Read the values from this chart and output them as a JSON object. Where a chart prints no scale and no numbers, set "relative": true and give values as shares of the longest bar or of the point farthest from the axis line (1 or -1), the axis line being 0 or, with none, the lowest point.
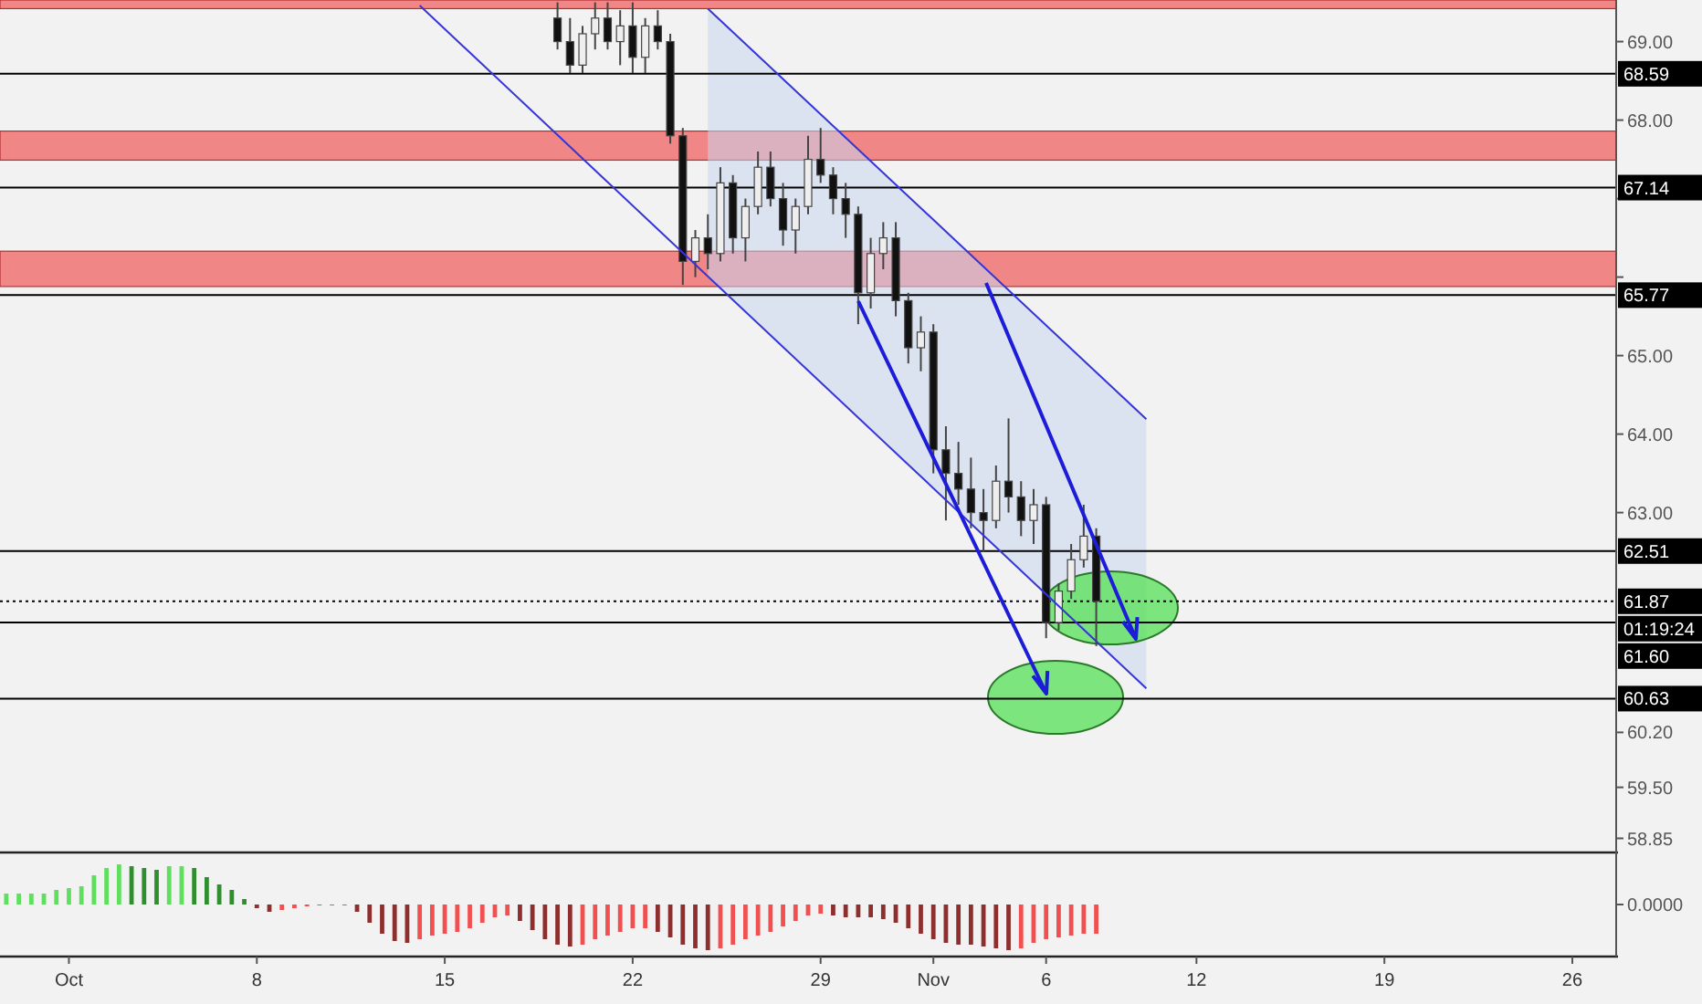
{
  "chart_data": [
    {
      "type": "candlestick",
      "ylim": [
        58.67,
        69.53
      ],
      "tick_labels": "y",
      "grid": false,
      "yticks": [
        {
          "value": 69,
          "label": "69.00"
        },
        {
          "value": 68,
          "label": "68.00"
        },
        {
          "value": 67,
          "label": null
        },
        {
          "value": 66,
          "label": null
        },
        {
          "value": 65,
          "label": "65.00"
        },
        {
          "value": 64,
          "label": "64.00"
        },
        {
          "value": 63,
          "label": "63.00"
        },
        {
          "value": 60.2,
          "label": "60.20"
        },
        {
          "value": 59.5,
          "label": "59.50"
        },
        {
          "value": 58.85,
          "label": "58.85"
        }
      ],
      "categories": [
        null,
        null,
        null,
        null,
        null,
        null,
        null,
        null,
        null,
        null,
        null,
        null,
        null,
        null,
        null,
        null,
        null,
        null,
        null,
        null,
        null,
        null,
        null,
        null,
        null,
        null,
        null,
        null,
        null,
        null,
        null,
        null,
        null,
        null,
        null,
        null,
        null,
        null,
        null,
        null,
        null,
        null,
        null,
        null,
        null,
        null,
        null,
        null,
        null,
        null,
        null,
        null,
        null,
        null,
        null,
        null,
        null,
        null,
        null,
        null,
        null,
        null,
        null,
        null,
        null,
        null,
        null,
        null,
        null,
        null,
        null,
        null,
        null,
        null,
        null,
        null,
        null,
        null,
        null,
        null,
        null,
        null,
        null,
        null,
        null,
        null,
        null,
        null,
        null,
        null,
        null,
        null,
        null,
        null,
        null,
        null,
        null,
        null,
        null,
        null,
        null,
        null,
        null,
        null,
        null,
        null,
        null,
        null,
        null,
        null,
        null,
        null,
        null,
        null,
        null,
        null,
        null,
        null,
        null,
        null,
        null,
        null,
        null,
        null,
        null,
        null,
        null,
        null,
        null
      ],
      "ohlc": [
        null,
        null,
        null,
        null,
        null,
        null,
        null,
        null,
        null,
        null,
        null,
        null,
        null,
        null,
        null,
        null,
        null,
        null,
        null,
        null,
        null,
        null,
        null,
        null,
        null,
        null,
        null,
        null,
        null,
        null,
        null,
        null,
        null,
        null,
        null,
        null,
        null,
        null,
        null,
        null,
        null,
        null,
        null,
        null,
        [
          69.3,
          69.5,
          68.9,
          69.0
        ],
        [
          69.0,
          69.3,
          68.6,
          68.7
        ],
        [
          68.7,
          69.2,
          68.6,
          69.1
        ],
        [
          69.1,
          69.5,
          68.9,
          69.3
        ],
        [
          69.3,
          69.5,
          68.9,
          69.0
        ],
        [
          69.0,
          69.4,
          68.7,
          69.2
        ],
        [
          69.2,
          69.5,
          68.6,
          68.8
        ],
        [
          68.8,
          69.3,
          68.6,
          69.2
        ],
        [
          69.2,
          69.4,
          68.9,
          69.0
        ],
        [
          69.0,
          69.1,
          67.7,
          67.8
        ],
        [
          67.8,
          67.9,
          65.9,
          66.2
        ],
        [
          66.2,
          66.6,
          66.0,
          66.5
        ],
        [
          66.5,
          66.8,
          66.1,
          66.3
        ],
        [
          66.3,
          67.4,
          66.2,
          67.2
        ],
        [
          67.2,
          67.3,
          66.3,
          66.5
        ],
        [
          66.5,
          67.0,
          66.2,
          66.9
        ],
        [
          66.9,
          67.6,
          66.8,
          67.4
        ],
        [
          67.4,
          67.6,
          66.9,
          67.0
        ],
        [
          67.0,
          67.2,
          66.4,
          66.6
        ],
        [
          66.6,
          67.0,
          66.3,
          66.9
        ],
        [
          66.9,
          67.8,
          66.8,
          67.5
        ],
        [
          67.5,
          67.9,
          67.2,
          67.3
        ],
        [
          67.3,
          67.4,
          66.8,
          67.0
        ],
        [
          67.0,
          67.2,
          66.5,
          66.8
        ],
        [
          66.8,
          66.9,
          65.4,
          65.8
        ],
        [
          65.8,
          66.5,
          65.6,
          66.3
        ],
        [
          66.3,
          66.7,
          66.1,
          66.5
        ],
        [
          66.5,
          66.7,
          65.5,
          65.7
        ],
        [
          65.7,
          65.8,
          64.9,
          65.1
        ],
        [
          65.1,
          65.5,
          64.8,
          65.3
        ],
        [
          65.3,
          65.4,
          63.5,
          63.8
        ],
        [
          63.8,
          64.1,
          62.9,
          63.5
        ],
        [
          63.5,
          63.9,
          63.1,
          63.3
        ],
        [
          63.3,
          63.7,
          62.8,
          63.0
        ],
        [
          63.0,
          63.3,
          62.5,
          62.9
        ],
        [
          62.9,
          63.6,
          62.8,
          63.4
        ],
        [
          63.4,
          64.2,
          63.0,
          63.2
        ],
        [
          63.2,
          63.4,
          62.7,
          62.9
        ],
        [
          62.9,
          63.3,
          62.6,
          63.1
        ],
        [
          63.1,
          63.2,
          61.4,
          61.6
        ],
        [
          61.6,
          62.1,
          61.5,
          62.0
        ],
        [
          62.0,
          62.6,
          61.9,
          62.4
        ],
        [
          62.4,
          63.1,
          62.3,
          62.7
        ],
        [
          62.7,
          62.8,
          61.3,
          61.87
        ],
        null,
        null,
        null,
        null,
        null,
        null,
        null,
        null,
        null,
        null,
        null,
        null,
        null,
        null,
        null,
        null,
        null,
        null,
        null,
        null,
        null,
        null,
        null,
        null,
        null,
        null,
        null,
        null,
        null,
        null,
        null,
        null,
        null,
        null,
        null,
        null,
        null,
        null,
        null,
        null,
        null
      ],
      "colors": [
        null,
        null,
        null,
        null,
        null,
        null,
        null,
        null,
        null,
        null,
        null,
        null,
        null,
        null,
        null,
        null,
        null,
        null,
        null,
        null,
        null,
        null,
        null,
        null,
        null,
        null,
        null,
        null,
        null,
        null,
        null,
        null,
        null,
        null,
        null,
        null,
        null,
        null,
        null,
        null,
        null,
        null,
        null,
        null,
        "#111111",
        "#111111",
        "#eeeeee",
        "#eeeeee",
        "#111111",
        "#eeeeee",
        "#111111",
        "#eeeeee",
        "#111111",
        "#111111",
        "#111111",
        "#eeeeee",
        "#111111",
        "#eeeeee",
        "#111111",
        "#eeeeee",
        "#eeeeee",
        "#111111",
        "#111111",
        "#eeeeee",
        "#eeeeee",
        "#111111",
        "#111111",
        "#111111",
        "#111111",
        "#eeeeee",
        "#eeeeee",
        "#111111",
        "#111111",
        "#eeeeee",
        "#111111",
        "#111111",
        "#111111",
        "#111111",
        "#111111",
        "#eeeeee",
        "#111111",
        "#111111",
        "#eeeeee",
        "#111111",
        "#eeeeee",
        "#eeeeee",
        "#eeeeee",
        "#111111",
        null,
        null,
        null,
        null,
        null,
        null,
        null,
        null,
        null,
        null,
        null,
        null,
        null,
        null,
        null,
        null,
        null,
        null,
        null,
        null,
        null,
        null,
        null,
        null,
        null,
        null,
        null,
        null,
        null,
        null,
        null,
        null,
        null,
        null,
        null,
        null,
        null,
        null,
        null,
        null,
        null
      ],
      "series": [
        {
          "type": "line",
          "color": "#3434d8",
          "values": [
            null,
            null,
            null,
            null,
            null,
            null,
            null,
            null,
            null,
            null,
            null,
            null,
            null,
            null,
            null,
            null,
            null,
            null,
            null,
            null,
            null,
            null,
            null,
            null,
            null,
            null,
            null,
            null,
            null,
            null,
            null,
            null,
            null,
            69.46,
            null,
            null,
            null,
            null,
            null,
            null,
            null,
            null,
            null,
            null,
            null,
            null,
            null,
            null,
            null,
            null,
            null,
            null,
            null,
            null,
            null,
            null,
            null,
            null,
            null,
            null,
            null,
            null,
            null,
            null,
            null,
            null,
            null,
            null,
            null,
            null,
            null,
            null,
            null,
            null,
            null,
            null,
            null,
            null,
            null,
            null,
            null,
            null,
            null,
            null,
            null,
            null,
            null,
            null,
            null,
            null,
            null,
            60.76,
            null,
            null,
            null,
            null,
            null,
            null,
            null,
            null,
            null,
            null,
            null,
            null,
            null,
            null,
            null,
            null,
            null,
            null,
            null,
            null,
            null,
            null,
            null,
            null,
            null,
            null,
            null,
            null,
            null,
            null,
            null,
            null,
            null,
            null,
            null,
            null,
            null
          ]
        },
        {
          "type": "line",
          "color": "#3434d8",
          "values": [
            null,
            null,
            null,
            null,
            null,
            null,
            null,
            null,
            null,
            null,
            null,
            null,
            null,
            null,
            null,
            null,
            null,
            null,
            null,
            null,
            null,
            null,
            null,
            null,
            null,
            null,
            null,
            null,
            null,
            null,
            null,
            null,
            null,
            null,
            null,
            null,
            null,
            null,
            null,
            null,
            null,
            null,
            null,
            null,
            null,
            null,
            null,
            null,
            null,
            null,
            null,
            null,
            null,
            null,
            null,
            null,
            69.42,
            null,
            null,
            null,
            null,
            null,
            null,
            null,
            null,
            null,
            null,
            null,
            null,
            null,
            null,
            null,
            null,
            null,
            null,
            null,
            null,
            null,
            null,
            null,
            null,
            null,
            null,
            null,
            null,
            null,
            null,
            null,
            null,
            null,
            null,
            64.19,
            null,
            null,
            null,
            null,
            null,
            null,
            null,
            null,
            null,
            null,
            null,
            null,
            null,
            null,
            null,
            null,
            null,
            null,
            null,
            null,
            null,
            null,
            null,
            null,
            null,
            null,
            null,
            null,
            null,
            null,
            null,
            null,
            null,
            null,
            null,
            null,
            null
          ]
        },
        {
          "type": "line",
          "color": "#c9d6ee",
          "values": [
            null,
            null,
            null,
            null,
            null,
            null,
            null,
            null,
            null,
            null,
            null,
            null,
            null,
            null,
            null,
            null,
            null,
            null,
            null,
            null,
            null,
            null,
            null,
            null,
            null,
            null,
            null,
            null,
            null,
            null,
            null,
            null,
            null,
            null,
            null,
            null,
            null,
            null,
            null,
            null,
            null,
            null,
            null,
            null,
            null,
            null,
            null,
            null,
            null,
            null,
            null,
            null,
            null,
            null,
            null,
            null,
            null,
            null,
            null,
            null,
            null,
            null,
            null,
            null,
            null,
            null,
            null,
            null,
            null,
            null,
            null,
            null,
            null,
            null,
            null,
            null,
            null,
            null,
            null,
            null,
            null,
            null,
            null,
            null,
            null,
            null,
            null,
            null,
            null,
            null,
            null,
            null,
            null,
            null,
            null,
            null,
            null,
            null,
            null,
            null,
            null,
            null,
            null,
            null,
            null,
            null,
            null,
            null,
            null,
            null,
            null,
            null,
            null,
            null,
            null,
            null,
            null,
            null,
            null,
            null,
            null,
            null,
            null,
            null,
            null,
            null,
            null,
            null,
            null
          ],
          "lower": [
            null,
            null,
            null,
            null,
            null,
            null,
            null,
            null,
            null,
            null,
            null,
            null,
            null,
            null,
            null,
            null,
            null,
            null,
            null,
            null,
            null,
            null,
            null,
            null,
            null,
            null,
            null,
            null,
            null,
            null,
            null,
            null,
            null,
            null,
            null,
            null,
            null,
            null,
            null,
            null,
            null,
            null,
            null,
            null,
            null,
            null,
            null,
            null,
            null,
            null,
            null,
            null,
            null,
            null,
            null,
            null,
            66.02,
            null,
            null,
            null,
            null,
            null,
            null,
            null,
            null,
            null,
            null,
            null,
            null,
            null,
            null,
            null,
            null,
            null,
            null,
            null,
            null,
            null,
            null,
            null,
            null,
            null,
            null,
            null,
            null,
            null,
            null,
            null,
            null,
            null,
            null,
            60.76,
            null,
            null,
            null,
            null,
            null,
            null,
            null,
            null,
            null,
            null,
            null,
            null,
            null,
            null,
            null,
            null,
            null,
            null,
            null,
            null,
            null,
            null,
            null,
            null,
            null,
            null,
            null,
            null,
            null,
            null,
            null,
            null,
            null,
            null,
            null,
            null,
            null
          ],
          "upper": [
            null,
            null,
            null,
            null,
            null,
            null,
            null,
            null,
            null,
            null,
            null,
            null,
            null,
            null,
            null,
            null,
            null,
            null,
            null,
            null,
            null,
            null,
            null,
            null,
            null,
            null,
            null,
            null,
            null,
            null,
            null,
            null,
            null,
            null,
            null,
            null,
            null,
            null,
            null,
            null,
            null,
            null,
            null,
            null,
            null,
            null,
            null,
            null,
            null,
            null,
            null,
            null,
            null,
            null,
            null,
            null,
            69.42,
            null,
            null,
            null,
            null,
            null,
            null,
            null,
            null,
            null,
            null,
            null,
            null,
            null,
            null,
            null,
            null,
            null,
            null,
            null,
            null,
            null,
            null,
            null,
            null,
            null,
            null,
            null,
            null,
            null,
            null,
            null,
            null,
            null,
            null,
            64.19,
            null,
            null,
            null,
            null,
            null,
            null,
            null,
            null,
            null,
            null,
            null,
            null,
            null,
            null,
            null,
            null,
            null,
            null,
            null,
            null,
            null,
            null,
            null,
            null,
            null,
            null,
            null,
            null,
            null,
            null,
            null,
            null,
            null,
            null,
            null,
            null,
            null
          ]
        }
      ],
      "bands": [
        {
          "axis": "y",
          "from": 69.42,
          "to": 69.53,
          "color": "#f06262"
        },
        {
          "axis": "y",
          "from": 67.49,
          "to": 67.86,
          "color": "#f06262"
        },
        {
          "axis": "y",
          "from": 65.88,
          "to": 66.33,
          "color": "#f06262"
        }
      ],
      "ref_lines": [
        {
          "axis": "y",
          "value": 68.59,
          "label": "68.59",
          "color": "#000000"
        },
        {
          "axis": "y",
          "value": 67.14,
          "label": "67.14",
          "color": "#000000"
        },
        {
          "axis": "y",
          "value": 65.77,
          "label": "65.77",
          "color": "#000000"
        },
        {
          "axis": "y",
          "value": 62.51,
          "label": "62.51",
          "color": "#000000"
        },
        {
          "axis": "y",
          "value": 61.87,
          "label": "61.87",
          "color": "#000000",
          "line_style": "dotted"
        },
        {
          "axis": "y",
          "value": 61.6,
          "label": "61.60",
          "color": "#000000"
        },
        {
          "axis": "y",
          "value": 60.63,
          "label": "60.63",
          "color": "#000000"
        }
      ],
      "annotations": [
        "01:19:24"
      ]
    },
    {
      "type": "bar",
      "relative": true,
      "grid": false,
      "categories": [
        null,
        null,
        null,
        null,
        null,
        "Oct",
        null,
        null,
        null,
        null,
        null,
        null,
        null,
        null,
        null,
        null,
        null,
        null,
        null,
        null,
        "8",
        null,
        null,
        null,
        null,
        null,
        null,
        null,
        null,
        null,
        null,
        null,
        null,
        null,
        null,
        "15",
        null,
        null,
        null,
        null,
        null,
        null,
        null,
        null,
        null,
        null,
        null,
        null,
        null,
        null,
        "22",
        null,
        null,
        null,
        null,
        null,
        null,
        null,
        null,
        null,
        null,
        null,
        null,
        null,
        null,
        "29",
        null,
        null,
        null,
        null,
        null,
        null,
        null,
        null,
        "Nov",
        null,
        null,
        null,
        null,
        null,
        null,
        null,
        null,
        "6",
        null,
        null,
        null,
        null,
        null,
        null,
        null,
        null,
        null,
        null,
        null,
        "12",
        null,
        null,
        null,
        null,
        null,
        null,
        null,
        null,
        null,
        null,
        null,
        null,
        null,
        null,
        "19",
        null,
        null,
        null,
        null,
        null,
        null,
        null,
        null,
        null,
        null,
        null,
        null,
        null,
        null,
        "26",
        null,
        null,
        null
      ],
      "values": [
        0.24,
        0.24,
        0.24,
        0.24,
        0.32,
        0.36,
        0.4,
        0.64,
        0.8,
        0.88,
        0.84,
        0.8,
        0.76,
        0.84,
        0.84,
        0.8,
        0.6,
        0.44,
        0.32,
        0.12,
        -0.08,
        -0.16,
        -0.12,
        -0.08,
        -0.04,
        0,
        0,
        0,
        -0.16,
        -0.4,
        -0.64,
        -0.8,
        -0.84,
        -0.76,
        -0.68,
        -0.64,
        -0.6,
        -0.52,
        -0.4,
        -0.28,
        -0.24,
        -0.36,
        -0.56,
        -0.76,
        -0.88,
        -0.92,
        -0.88,
        -0.76,
        -0.68,
        -0.6,
        -0.52,
        -0.52,
        -0.6,
        -0.72,
        -0.88,
        -0.96,
        -1,
        -0.96,
        -0.88,
        -0.76,
        -0.68,
        -0.6,
        -0.48,
        -0.36,
        -0.24,
        -0.2,
        -0.24,
        -0.28,
        -0.28,
        -0.28,
        -0.32,
        -0.4,
        -0.52,
        -0.64,
        -0.76,
        -0.84,
        -0.88,
        -0.88,
        -0.92,
        -0.96,
        -1,
        -0.96,
        -0.84,
        -0.76,
        -0.72,
        -0.68,
        -0.64,
        -0.64,
        null,
        null,
        null,
        null,
        null,
        null,
        null,
        null,
        null,
        null,
        null,
        null,
        null,
        null,
        null,
        null,
        null,
        null,
        null,
        null,
        null,
        null,
        null,
        null,
        null,
        null,
        null,
        null,
        null,
        null,
        null,
        null,
        null,
        null,
        null,
        null,
        null,
        null,
        null,
        null,
        null
      ],
      "colors": [
        "#5ee05e",
        "#5ee05e",
        "#5ee05e",
        "#5ee05e",
        "#5ee05e",
        "#5ee05e",
        "#5ee05e",
        "#5ee05e",
        "#5ee05e",
        "#5ee05e",
        "#2f8f2f",
        "#2f8f2f",
        "#2f8f2f",
        "#5ee05e",
        "#5ee05e",
        "#2f8f2f",
        "#2f8f2f",
        "#2f8f2f",
        "#2f8f2f",
        "#2f8f2f",
        "#8e2f2f",
        "#8e2f2f",
        "#f05050",
        "#f05050",
        "#f05050",
        "#f05050",
        "#f05050",
        "#f05050",
        "#8e2f2f",
        "#8e2f2f",
        "#8e2f2f",
        "#8e2f2f",
        "#8e2f2f",
        "#f05050",
        "#f05050",
        "#f05050",
        "#f05050",
        "#f05050",
        "#f05050",
        "#f05050",
        "#f05050",
        "#8e2f2f",
        "#8e2f2f",
        "#8e2f2f",
        "#8e2f2f",
        "#8e2f2f",
        "#f05050",
        "#f05050",
        "#f05050",
        "#f05050",
        "#f05050",
        "#f05050",
        "#8e2f2f",
        "#8e2f2f",
        "#8e2f2f",
        "#8e2f2f",
        "#8e2f2f",
        "#f05050",
        "#f05050",
        "#f05050",
        "#f05050",
        "#f05050",
        "#f05050",
        "#f05050",
        "#f05050",
        "#f05050",
        "#8e2f2f",
        "#8e2f2f",
        "#8e2f2f",
        "#8e2f2f",
        "#8e2f2f",
        "#8e2f2f",
        "#8e2f2f",
        "#8e2f2f",
        "#8e2f2f",
        "#8e2f2f",
        "#8e2f2f",
        "#8e2f2f",
        "#8e2f2f",
        "#8e2f2f",
        "#8e2f2f",
        "#f05050",
        "#f05050",
        "#f05050",
        "#f05050",
        "#f05050",
        "#f05050",
        "#f05050",
        null,
        null,
        null,
        null,
        null,
        null,
        null,
        null,
        null,
        null,
        null,
        null,
        null,
        null,
        null,
        null,
        null,
        null,
        null,
        null,
        null,
        null,
        null,
        null,
        null,
        null,
        null,
        null,
        null,
        null,
        null,
        null,
        null,
        null,
        null,
        null,
        null,
        null,
        null,
        null,
        null
      ],
      "annotations": [
        "0.0000"
      ]
    }
  ]
}
